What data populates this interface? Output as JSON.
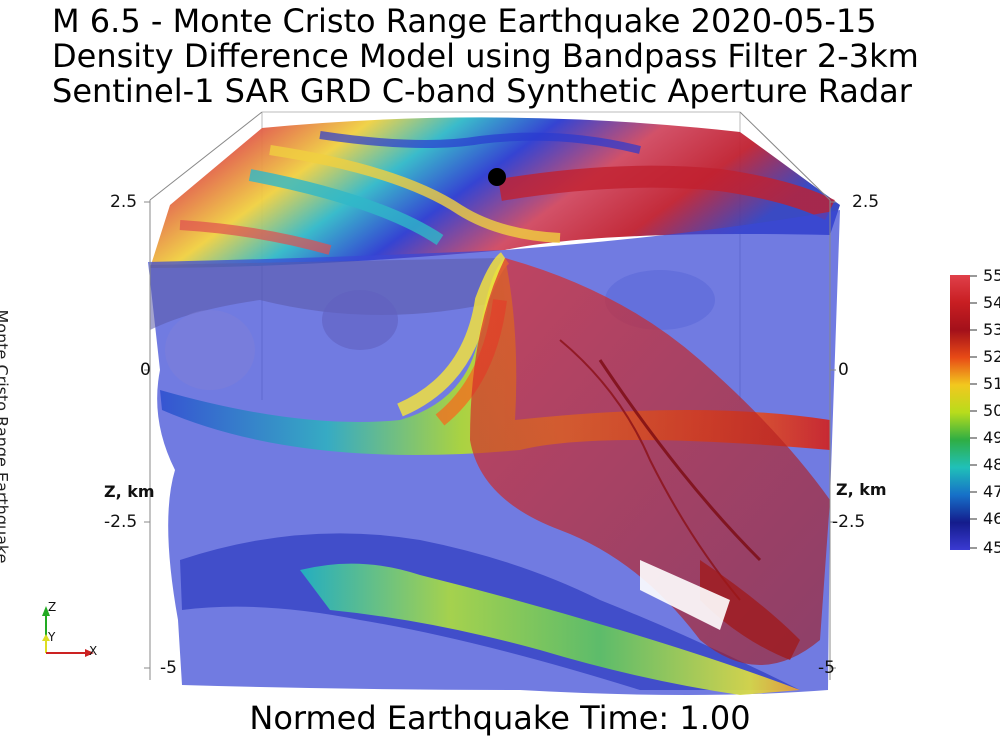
{
  "title": {
    "line1": "M 6.5 - Monte Cristo Range Earthquake 2020-05-15",
    "line2": "Density Difference Model using Bandpass Filter 2-3km",
    "line3": "Sentinel-1 SAR GRD C-band Synthetic Aperture Radar"
  },
  "side_label": "Monte Cristo Range Earthquake",
  "footer": "Normed Earthquake Time: 1.00",
  "axis": {
    "title_left": "Z, km",
    "title_right": "Z, km",
    "ticks_left": [
      "2.5",
      "0",
      "-2.5",
      "-5"
    ],
    "ticks_right": [
      "2.5",
      "0",
      "-2.5",
      "-5"
    ]
  },
  "colorbar": {
    "labels": [
      "55",
      "54",
      "53",
      "52",
      "51",
      "50",
      "49",
      "48",
      "47",
      "46",
      "45"
    ],
    "colors": [
      "#e0404a",
      "#c81e22",
      "#a3101a",
      "#e84a16",
      "#f2c81e",
      "#b8dc1c",
      "#2fae44",
      "#20c0b8",
      "#1670c8",
      "#141c8c",
      "#3a3ad2"
    ]
  },
  "orientation": {
    "z": "Z",
    "y": "Y",
    "x": "X"
  }
}
